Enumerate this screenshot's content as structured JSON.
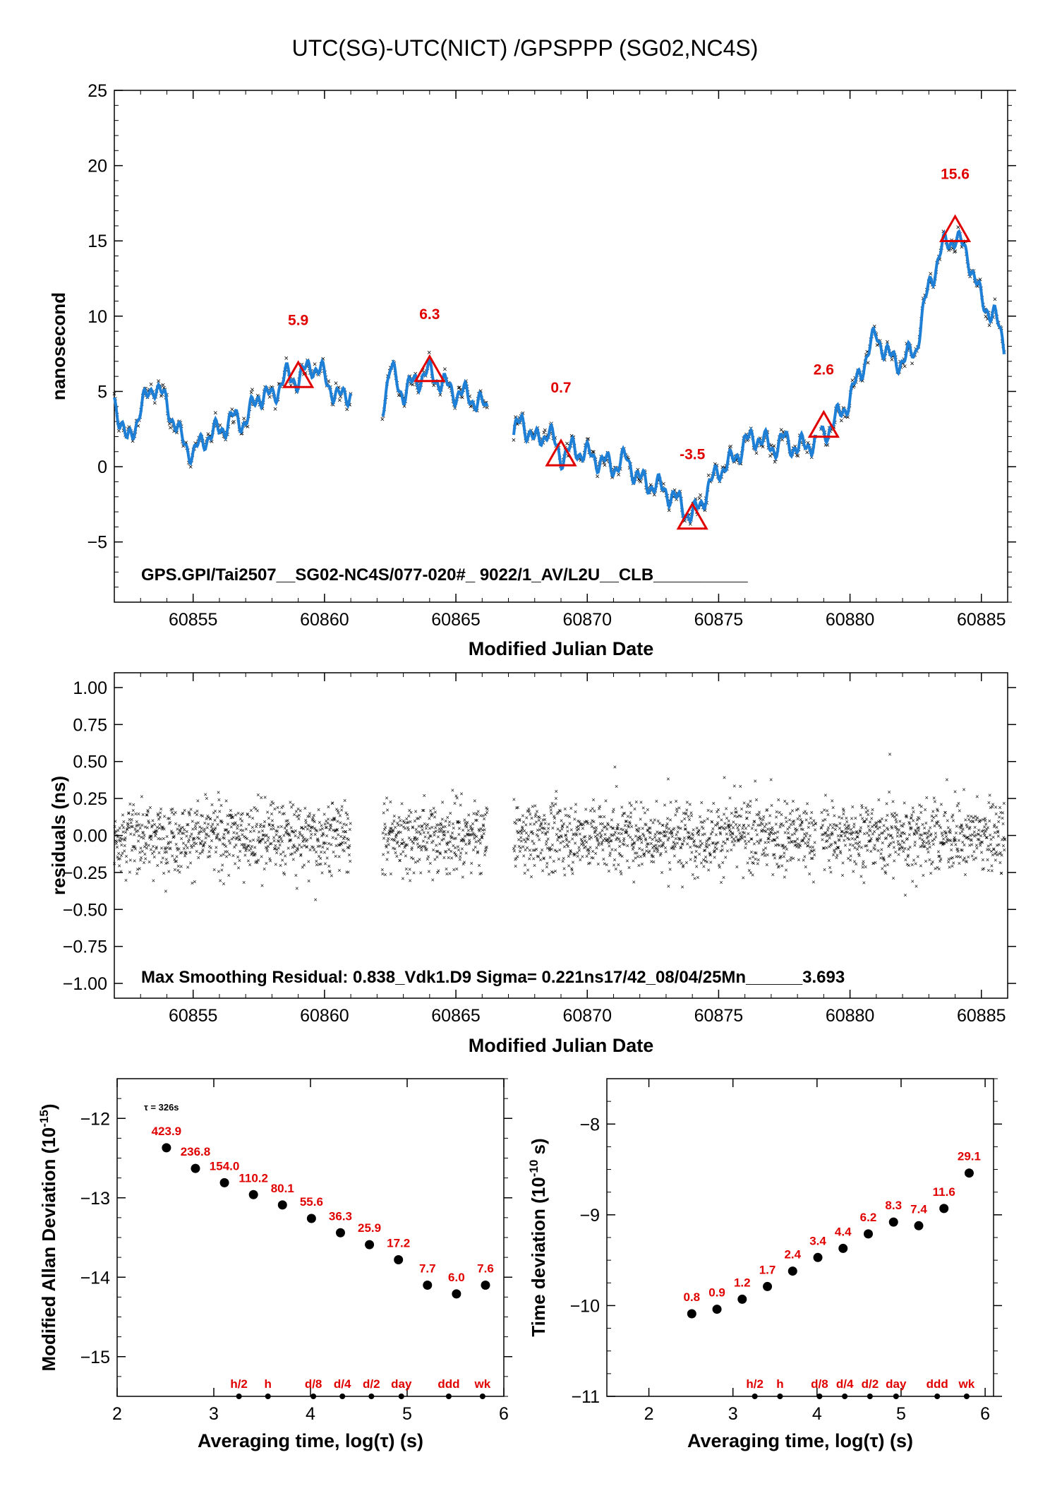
{
  "title": "UTC(SG)-UTC(NICT)  /GPSPPP  (SG02,NC4S)",
  "colors": {
    "data": "#000000",
    "smooth": "#1e7fd6",
    "marker": "#e00000",
    "label": "#e00000"
  },
  "chart_data": [
    {
      "type": "line",
      "xlabel": "Modified Julian Date",
      "ylabel": "nanosecond",
      "xlim": [
        60852,
        60886
      ],
      "ylim": [
        -9,
        25
      ],
      "xticks": [
        "60855",
        "60860",
        "60865",
        "60870",
        "60875",
        "60880",
        "60885"
      ],
      "yticks": [
        "25",
        "20",
        "15",
        "10",
        "5",
        "0",
        "−5"
      ],
      "segments": [
        [
          60852,
          60861
        ],
        [
          60862.2,
          60866.2
        ],
        [
          60867.2,
          60878.7
        ],
        [
          60878.9,
          60885.9
        ]
      ],
      "series": [
        {
          "x": [
            60852,
            60852.5,
            60853,
            60853.5,
            60854,
            60854.5,
            60855,
            60855.5,
            60856,
            60856.5,
            60857,
            60857.5,
            60858,
            60858.5,
            60859,
            60859.5,
            60860,
            60860.5,
            60861,
            60862.2,
            60862.5,
            60863,
            60863.5,
            60864,
            60864.5,
            60865,
            60865.5,
            60866.2,
            60867.2,
            60867.5,
            60868,
            60868.5,
            60869,
            60869.5,
            60870,
            60870.5,
            60871,
            60871.5,
            60872,
            60872.5,
            60873,
            60873.5,
            60874,
            60874.5,
            60875,
            60875.5,
            60876,
            60876.5,
            60877,
            60877.5,
            60878,
            60878.7,
            60878.9,
            60879.5,
            60880,
            60880.5,
            60881,
            60881.5,
            60882,
            60882.5,
            60883,
            60883.5,
            60884,
            60884.5,
            60885,
            60885.5,
            60885.9
          ],
          "y": [
            4.5,
            1.5,
            3.8,
            5.5,
            4.2,
            2.0,
            0.8,
            2.0,
            2.4,
            3.2,
            3.0,
            4.8,
            4.6,
            6.0,
            5.8,
            6.8,
            6.0,
            4.5,
            5.0,
            4.0,
            6.5,
            4.8,
            5.8,
            6.3,
            5.5,
            4.9,
            4.7,
            3.8,
            2.0,
            3.2,
            1.6,
            2.4,
            0.7,
            1.2,
            0.8,
            0.4,
            0.0,
            0.5,
            -0.9,
            -1.2,
            -1.6,
            -2.4,
            -3.4,
            -1.8,
            -0.2,
            0.3,
            1.6,
            2.0,
            1.2,
            1.8,
            1.2,
            1.7,
            2.0,
            3.2,
            4.5,
            6.8,
            8.8,
            7.2,
            7.0,
            7.8,
            12.0,
            14.5,
            15.3,
            14.0,
            11.0,
            10.0,
            8.0
          ]
        }
      ],
      "markers": {
        "x": [
          60859,
          60864,
          60869,
          60874,
          60879,
          60884
        ],
        "labels": [
          "5.9",
          "6.3",
          "0.7",
          "-3.5",
          "2.6",
          "15.6"
        ],
        "values": [
          5.9,
          6.3,
          0.7,
          -3.5,
          2.6,
          15.6
        ]
      },
      "annotation": "GPS.GPI/Tai2507__SG02-NC4S/077-020#_  9022/1_AV/L2U__CLB__________"
    },
    {
      "type": "scatter",
      "xlabel": "Modified Julian Date",
      "ylabel": "residuals (ns)",
      "xlim": [
        60852,
        60886
      ],
      "ylim": [
        -1.1,
        1.1
      ],
      "xticks": [
        "60855",
        "60860",
        "60865",
        "60870",
        "60875",
        "60880",
        "60885"
      ],
      "yticks": [
        "1.00",
        "0.75",
        "0.50",
        "0.25",
        "0.00",
        "−0.25",
        "−0.50",
        "−0.75",
        "−1.00"
      ],
      "sigma": 0.221,
      "max_residual": 0.838,
      "annotation": "Max Smoothing Residual: 0.838_Vdk1.D9  Sigma= 0.221ns17/42_08/04/25Mn______3.693"
    },
    {
      "type": "scatter",
      "xlabel": "Averaging time, log(τ) (s)",
      "ylabel_main": "Modified Allan Deviation (10",
      "ylabel_sup": "-15",
      "ylabel_end": ")",
      "xlim": [
        2,
        6
      ],
      "ylim": [
        -15.5,
        -11.5
      ],
      "xticks": [
        "2",
        "3",
        "4",
        "5",
        "6"
      ],
      "yticks": [
        "−12",
        "−13",
        "−14",
        "−15"
      ],
      "tau_note": "τ = 326s",
      "x": [
        2.51,
        2.81,
        3.11,
        3.41,
        3.71,
        4.01,
        4.31,
        4.61,
        4.91,
        5.21,
        5.51,
        5.81
      ],
      "y": [
        -12.37,
        -12.63,
        -12.81,
        -12.96,
        -13.09,
        -13.26,
        -13.44,
        -13.59,
        -13.78,
        -14.1,
        -14.21,
        -14.1
      ],
      "labels": [
        "423.9",
        "236.8",
        "154.0",
        "110.2",
        "80.1",
        "55.6",
        "36.3",
        "25.9",
        "17.2",
        "7.7",
        "6.0",
        "7.6"
      ],
      "time_marks": {
        "x": [
          3.26,
          3.56,
          4.03,
          4.33,
          4.63,
          4.94,
          5.43,
          5.78
        ],
        "labels": [
          "h/2",
          "h",
          "d/8",
          "d/4",
          "d/2",
          "day",
          "ddd",
          "wk"
        ]
      }
    },
    {
      "type": "scatter",
      "xlabel": "Averaging time, log(τ) (s)",
      "ylabel_main": "Time deviation (10",
      "ylabel_sup": "-10",
      "ylabel_end": " s)",
      "xlim": [
        1.5,
        6.1
      ],
      "ylim": [
        -11,
        -7.5
      ],
      "xticks": [
        "2",
        "3",
        "4",
        "5",
        "6"
      ],
      "yticks": [
        "−8",
        "−9",
        "−10",
        "−11"
      ],
      "x": [
        2.51,
        2.81,
        3.11,
        3.41,
        3.71,
        4.01,
        4.31,
        4.61,
        4.91,
        5.21,
        5.51,
        5.81
      ],
      "y": [
        -10.09,
        -10.04,
        -9.93,
        -9.79,
        -9.62,
        -9.47,
        -9.37,
        -9.21,
        -9.08,
        -9.12,
        -8.93,
        -8.54
      ],
      "labels": [
        "0.8",
        "0.9",
        "1.2",
        "1.7",
        "2.4",
        "3.4",
        "4.4",
        "6.2",
        "8.3",
        "7.4",
        "11.6",
        "29.1"
      ],
      "time_marks": {
        "x": [
          3.26,
          3.56,
          4.03,
          4.33,
          4.63,
          4.94,
          5.43,
          5.78
        ],
        "labels": [
          "h/2",
          "h",
          "d/8",
          "d/4",
          "d/2",
          "day",
          "ddd",
          "wk"
        ]
      }
    }
  ]
}
